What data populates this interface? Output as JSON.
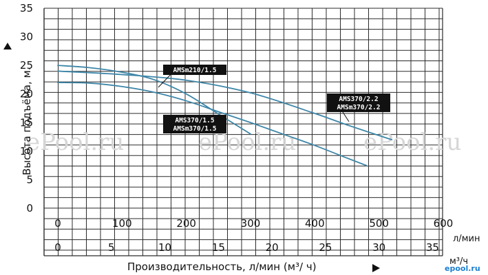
{
  "chart_data": {
    "type": "line",
    "ylabel": "Высота подъёма, м.",
    "xlabel": "Производительность, л/мин (м³/ ч)",
    "x_unit_primary": "л/мин",
    "x_unit_secondary": "м³/ч",
    "ylim": [
      0,
      35
    ],
    "y_ticks": [
      "0",
      "5",
      "10",
      "15",
      "20",
      "25",
      "30",
      "35"
    ],
    "xlim": [
      0,
      600
    ],
    "x_ticks_primary": [
      "0",
      "100",
      "200",
      "300",
      "400",
      "500",
      "600"
    ],
    "x_ticks_secondary": [
      "0",
      "5",
      "10",
      "15",
      "20",
      "25",
      "30",
      "35"
    ],
    "grid": true,
    "colors": {
      "curve": "#3d86a8",
      "grid": "#2a2a2a",
      "label_bg": "#111111"
    },
    "series": [
      {
        "name": "AMSm210/1.5",
        "x": [
          0,
          50,
          100,
          150,
          200,
          250,
          300
        ],
        "y": [
          25,
          24.6,
          23.8,
          22.5,
          20,
          16.5,
          13
        ]
      },
      {
        "name": "AMS370/1.5 AMSm370/1.5",
        "x": [
          0,
          50,
          100,
          150,
          200,
          250,
          300,
          350,
          400,
          450,
          480
        ],
        "y": [
          22,
          21.9,
          21.3,
          20.3,
          18.8,
          16.9,
          15,
          13,
          11,
          8.8,
          7.5
        ]
      },
      {
        "name": "AMS370/2.2 AMSm370/2.2",
        "x": [
          0,
          100,
          200,
          300,
          400,
          450,
          520
        ],
        "y": [
          24,
          23.4,
          22.4,
          20.2,
          16.6,
          14.6,
          12
        ]
      }
    ],
    "annotations": [
      {
        "lines": [
          "AMSm210/1.5"
        ],
        "series": 0
      },
      {
        "lines": [
          "AMS370/1.5",
          "AMSm370/1.5"
        ],
        "series": 1
      },
      {
        "lines": [
          "AMS370/2.2",
          "AMSm370/2.2"
        ],
        "series": 2
      }
    ]
  },
  "watermarks": [
    "ePool.ru",
    "ePool.ru",
    "ePool.ru"
  ],
  "brand": "epool.ru"
}
